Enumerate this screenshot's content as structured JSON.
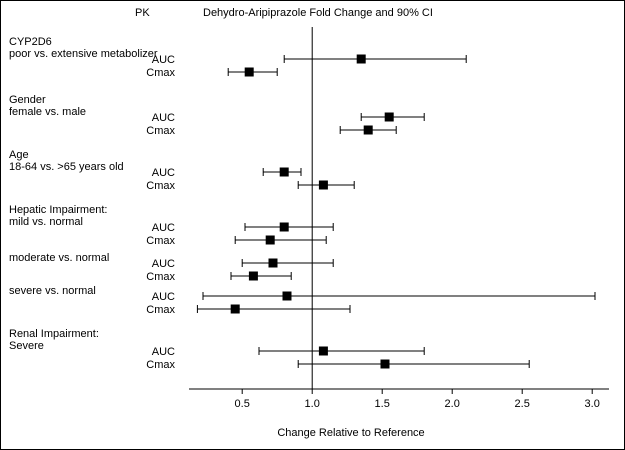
{
  "chart_data": {
    "type": "forest",
    "title": "Dehydro-Aripiprazole Fold Change and 90% CI",
    "pk_column_header": "PK",
    "xlabel": "Change Relative to Reference",
    "ci_level": "90% CI",
    "xticks": [
      0.5,
      1.0,
      1.5,
      2.0,
      2.5,
      3.0
    ],
    "xlim": [
      0.12,
      3.12
    ],
    "reference_line": 1.0,
    "groups": [
      {
        "label_lines": [
          "CYP2D6",
          "poor vs. extensive metabolizer"
        ],
        "subgroup": false,
        "rows": [
          {
            "pk": "AUC",
            "est": 1.35,
            "lo": 0.8,
            "hi": 2.1
          },
          {
            "pk": "Cmax",
            "est": 0.55,
            "lo": 0.4,
            "hi": 0.75
          }
        ]
      },
      {
        "label_lines": [
          "Gender",
          "female vs. male"
        ],
        "subgroup": false,
        "rows": [
          {
            "pk": "AUC",
            "est": 1.55,
            "lo": 1.35,
            "hi": 1.8
          },
          {
            "pk": "Cmax",
            "est": 1.4,
            "lo": 1.2,
            "hi": 1.6
          }
        ]
      },
      {
        "label_lines": [
          "Age",
          "18-64 vs. >65 years old"
        ],
        "subgroup": false,
        "rows": [
          {
            "pk": "AUC",
            "est": 0.8,
            "lo": 0.65,
            "hi": 0.92
          },
          {
            "pk": "Cmax",
            "est": 1.08,
            "lo": 0.9,
            "hi": 1.3
          }
        ]
      },
      {
        "label_lines": [
          "Hepatic Impairment:",
          "mild vs. normal"
        ],
        "subgroup": false,
        "rows": [
          {
            "pk": "AUC",
            "est": 0.8,
            "lo": 0.52,
            "hi": 1.15
          },
          {
            "pk": "Cmax",
            "est": 0.7,
            "lo": 0.45,
            "hi": 1.1
          }
        ]
      },
      {
        "label_lines": [
          "moderate vs. normal"
        ],
        "subgroup": true,
        "rows": [
          {
            "pk": "AUC",
            "est": 0.72,
            "lo": 0.5,
            "hi": 1.15
          },
          {
            "pk": "Cmax",
            "est": 0.58,
            "lo": 0.42,
            "hi": 0.85
          }
        ]
      },
      {
        "label_lines": [
          "severe vs. normal"
        ],
        "subgroup": true,
        "rows": [
          {
            "pk": "AUC",
            "est": 0.82,
            "lo": 0.22,
            "hi": 3.02
          },
          {
            "pk": "Cmax",
            "est": 0.45,
            "lo": 0.18,
            "hi": 1.27
          }
        ]
      },
      {
        "label_lines": [
          "Renal Impairment:",
          "Severe"
        ],
        "subgroup": false,
        "rows": [
          {
            "pk": "AUC",
            "est": 1.08,
            "lo": 0.62,
            "hi": 1.8
          },
          {
            "pk": "Cmax",
            "est": 1.52,
            "lo": 0.9,
            "hi": 2.55
          }
        ]
      }
    ]
  }
}
